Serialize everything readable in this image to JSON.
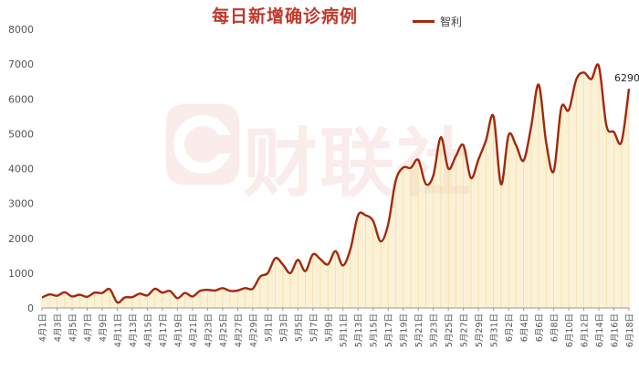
{
  "chart_data": {
    "type": "area",
    "title": "每日新增确诊病例",
    "legend_position": "top-right",
    "ylim": [
      0,
      8000
    ],
    "yticks": [
      0,
      1000,
      2000,
      3000,
      4000,
      5000,
      6000,
      7000,
      8000
    ],
    "grid": false,
    "line_color": "#a0290f",
    "fill_color": "#f5dfa6",
    "end_label": "6290",
    "watermark_text": "财联社",
    "x": [
      "4月1日",
      "4月2日",
      "4月3日",
      "4月4日",
      "4月5日",
      "4月6日",
      "4月7日",
      "4月8日",
      "4月9日",
      "4月10日",
      "4月11日",
      "4月12日",
      "4月13日",
      "4月14日",
      "4月15日",
      "4月16日",
      "4月17日",
      "4月18日",
      "4月19日",
      "4月20日",
      "4月21日",
      "4月22日",
      "4月23日",
      "4月24日",
      "4月25日",
      "4月26日",
      "4月27日",
      "4月28日",
      "4月29日",
      "4月30日",
      "5月1日",
      "5月2日",
      "5月3日",
      "5月4日",
      "5月5日",
      "5月6日",
      "5月7日",
      "5月8日",
      "5月9日",
      "5月10日",
      "5月11日",
      "5月12日",
      "5月13日",
      "5月14日",
      "5月15日",
      "5月16日",
      "5月17日",
      "5月18日",
      "5月19日",
      "5月20日",
      "5月21日",
      "5月22日",
      "5月23日",
      "5月24日",
      "5月25日",
      "5月26日",
      "5月27日",
      "5月28日",
      "5月29日",
      "5月30日",
      "5月31日",
      "6月1日",
      "6月2日",
      "6月3日",
      "6月4日",
      "6月5日",
      "6月6日",
      "6月7日",
      "6月8日",
      "6月9日",
      "6月10日",
      "6月11日",
      "6月12日",
      "6月13日",
      "6月14日",
      "6月15日",
      "6月16日",
      "6月17日",
      "6月18日"
    ],
    "tick_labels": [
      "4月1日",
      "4月3日",
      "4月5日",
      "4月7日",
      "4月9日",
      "4月11日",
      "4月13日",
      "4月15日",
      "4月17日",
      "4月19日",
      "4月21日",
      "4月23日",
      "4月25日",
      "4月27日",
      "4月29日",
      "5月1日",
      "5月3日",
      "5月5日",
      "5月7日",
      "5月9日",
      "5月11日",
      "5月13日",
      "5月15日",
      "5月17日",
      "5月19日",
      "5月21日",
      "5月23日",
      "5月25日",
      "5月27日",
      "5月29日",
      "5月31日",
      "6月2日",
      "6月4日",
      "6月6日",
      "6月8日",
      "6月10日",
      "6月12日",
      "6月14日",
      "6月16日",
      "6月18日"
    ],
    "series": [
      {
        "name": "智利",
        "values": [
          300,
          390,
          350,
          450,
          330,
          380,
          320,
          440,
          430,
          540,
          160,
          300,
          310,
          410,
          360,
          550,
          440,
          490,
          280,
          430,
          330,
          490,
          520,
          500,
          570,
          490,
          500,
          570,
          550,
          900,
          1000,
          1430,
          1250,
          1000,
          1380,
          1060,
          1540,
          1400,
          1250,
          1630,
          1220,
          1700,
          2660,
          2660,
          2500,
          1910,
          2400,
          3650,
          4030,
          4020,
          4250,
          3560,
          3800,
          4900,
          4000,
          4360,
          4670,
          3730,
          4260,
          4810,
          5500,
          3550,
          4960,
          4670,
          4230,
          5200,
          6410,
          4750,
          3920,
          5740,
          5680,
          6560,
          6760,
          6570,
          6940,
          5240,
          5050,
          4760,
          6290
        ]
      }
    ]
  }
}
